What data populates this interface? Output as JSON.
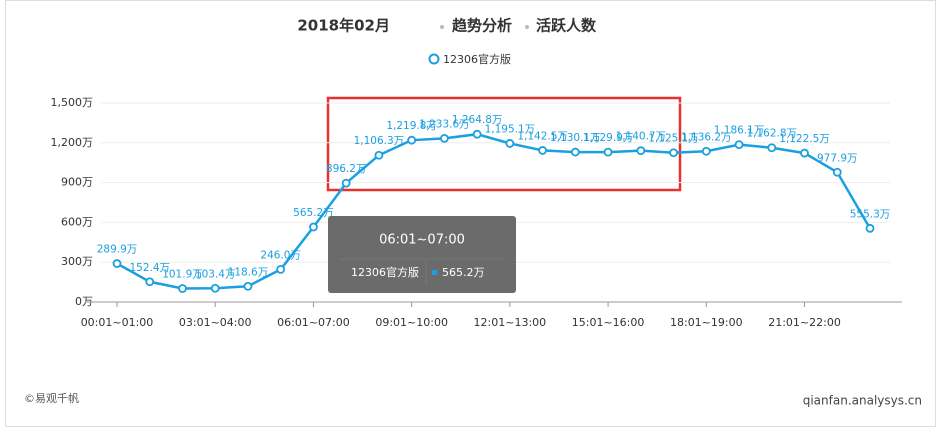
{
  "header": {
    "period": "2018年02月",
    "section": "趋势分析",
    "metric": "活跃人数"
  },
  "chart_data": {
    "type": "line",
    "categories": [
      "00:01~01:00",
      null,
      null,
      "03:01~04:00",
      null,
      null,
      "06:01~07:00",
      null,
      null,
      "09:01~10:00",
      null,
      null,
      "12:01~13:00",
      null,
      null,
      "15:01~16:00",
      null,
      null,
      "18:01~19:00",
      null,
      null,
      "21:01~22:00",
      null,
      null
    ],
    "series": [
      {
        "name": "12306官方版",
        "color": "#1a9fe0",
        "values": [
          289.9,
          152.4,
          101.9,
          103.4,
          118.6,
          246.0,
          565.2,
          896.2,
          1106.3,
          1219.8,
          1233.6,
          1264.8,
          1195.1,
          1142.5,
          1130.1,
          1129.9,
          1140.7,
          1125.1,
          1136.2,
          1186.1,
          1162.8,
          1122.5,
          977.9,
          555.3
        ],
        "value_labels": [
          "289.9万",
          "152.4万",
          "101.9万",
          "103.4万",
          "118.6万",
          "246.0万",
          "565.2万",
          "896.2万",
          "1,106.3万",
          "1,219.8万",
          "1,233.6万",
          "1,264.8万",
          "1,195.1万",
          "1,142.5万",
          "1,130.1万",
          "1,129.9万",
          "1,140.7万",
          "1,125.1万",
          "1,136.2万",
          "1,186.1万",
          "1,162.8万",
          "1,122.5万",
          "977.9万",
          "555.3万"
        ]
      }
    ],
    "ylim": [
      0,
      1500
    ],
    "yticks": [
      {
        "value": 0,
        "label": "0万"
      },
      {
        "value": 300,
        "label": "300万"
      },
      {
        "value": 600,
        "label": "600万"
      },
      {
        "value": 900,
        "label": "900万"
      },
      {
        "value": 1200,
        "label": "1,200万"
      },
      {
        "value": 1500,
        "label": "1,500万"
      }
    ],
    "grid": true,
    "tooltip_index": 6
  },
  "footer": {
    "copyright": "©易观千帆",
    "site": "qianfan.analysys.cn"
  }
}
